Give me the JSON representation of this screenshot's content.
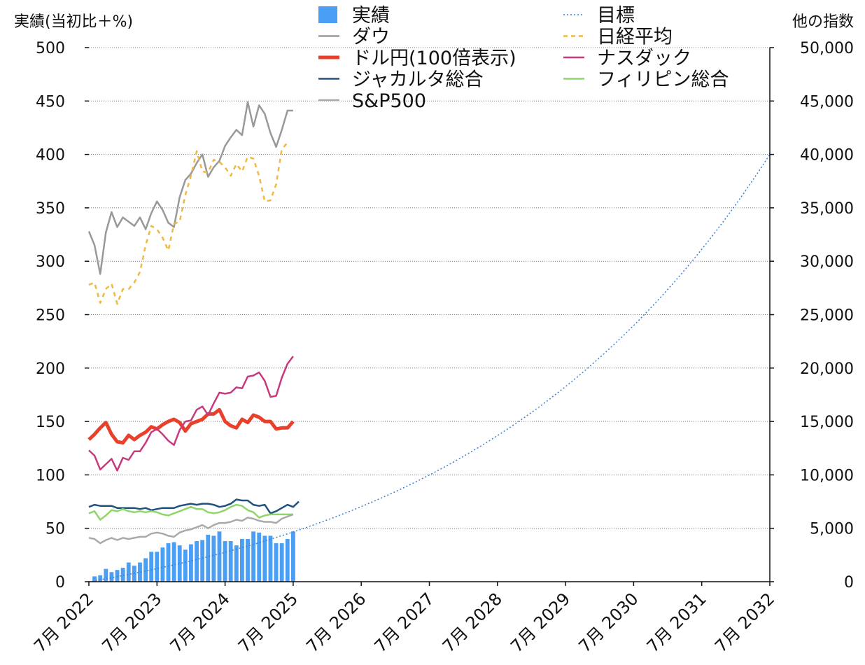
{
  "chart_data": {
    "type": "bar",
    "ylabel_left": "実績(当初比＋%)",
    "ylabel_right": "他の指数",
    "ylim_left": [
      0,
      500
    ],
    "ylim_right": [
      0,
      50000
    ],
    "y_ticks_left": [
      "0",
      "50",
      "100",
      "150",
      "200",
      "250",
      "300",
      "350",
      "400",
      "450",
      "500"
    ],
    "y_ticks_right": [
      "0",
      "5,000",
      "10,000",
      "15,000",
      "20,000",
      "25,000",
      "30,000",
      "35,000",
      "40,000",
      "45,000",
      "50,000"
    ],
    "x_range": [
      2022.5,
      2032.5
    ],
    "x_ticks": [
      {
        "x": 2022.5,
        "label": "7月 2022"
      },
      {
        "x": 2023.5,
        "label": "7月 2023"
      },
      {
        "x": 2024.5,
        "label": "7月 2024"
      },
      {
        "x": 2025.5,
        "label": "7月 2025"
      },
      {
        "x": 2026.5,
        "label": "7月 2026"
      },
      {
        "x": 2027.5,
        "label": "7月 2027"
      },
      {
        "x": 2028.5,
        "label": "7月 2028"
      },
      {
        "x": 2029.5,
        "label": "7月 2029"
      },
      {
        "x": 2030.5,
        "label": "7月 2030"
      },
      {
        "x": 2031.5,
        "label": "7月 2031"
      },
      {
        "x": 2032.5,
        "label": "7月 2032"
      }
    ],
    "grid": "horizontal dotted",
    "legend_position": "top",
    "bars": {
      "name": "実績",
      "color": "#4a9ff5",
      "x_start": 2022.5833,
      "x_step": 0.08333,
      "values": [
        5,
        6,
        12,
        9,
        11,
        13,
        18,
        15,
        18,
        22,
        28,
        28,
        32,
        36,
        37,
        34,
        30,
        35,
        38,
        39,
        44,
        43,
        47,
        38,
        38,
        34,
        40,
        40,
        47,
        46,
        43,
        43,
        36,
        36,
        40,
        47
      ]
    },
    "series": [
      {
        "name": "ダウ",
        "axis": "right",
        "color": "#999999",
        "style": "solid",
        "width": 2.5,
        "x_start": 2022.5,
        "x_step": 0.08333,
        "values": [
          32800,
          31500,
          28800,
          32700,
          34600,
          33200,
          34100,
          33700,
          33300,
          34100,
          33000,
          34500,
          35600,
          34800,
          33600,
          33200,
          36000,
          37600,
          38200,
          39200,
          40000,
          37900,
          38800,
          39400,
          40800,
          41600,
          42300,
          41800,
          44900,
          42600,
          44600,
          43800,
          42000,
          40700,
          42300,
          44100,
          44100
        ]
      },
      {
        "name": "日経平均",
        "axis": "right",
        "color": "#f0b840",
        "style": "dashed",
        "width": 2.5,
        "x_start": 2022.5,
        "x_step": 0.08333,
        "values": [
          27800,
          28000,
          26100,
          27400,
          27900,
          26000,
          27400,
          27400,
          28000,
          29000,
          31500,
          33300,
          33000,
          32200,
          31000,
          33500,
          33700,
          36200,
          38000,
          40300,
          38400,
          38300,
          39500,
          39300,
          38800,
          38000,
          39100,
          38400,
          39800,
          39600,
          38000,
          35600,
          35700,
          37200,
          40500,
          41100
        ]
      },
      {
        "name": "ドル円(100倍表示)",
        "axis": "right",
        "color": "#e8402a",
        "style": "solid",
        "width": 5,
        "x_start": 2022.5,
        "x_step": 0.08333,
        "values": [
          13300,
          13800,
          14400,
          14900,
          13800,
          13100,
          13000,
          13700,
          13300,
          13700,
          14000,
          14500,
          14300,
          14700,
          15000,
          15200,
          14900,
          14100,
          14800,
          15000,
          15200,
          15700,
          15700,
          16100,
          15000,
          14600,
          14400,
          15200,
          14900,
          15600,
          15400,
          15000,
          15000,
          14300,
          14400,
          14400,
          15000
        ]
      },
      {
        "name": "ナスダック",
        "axis": "right",
        "color": "#c83a7e",
        "style": "solid",
        "width": 2.5,
        "x_start": 2022.5,
        "x_step": 0.08333,
        "values": [
          12300,
          11800,
          10500,
          11000,
          11500,
          10400,
          11600,
          11400,
          12200,
          12200,
          13000,
          14000,
          14300,
          13800,
          13200,
          12800,
          14200,
          15000,
          15100,
          16100,
          16400,
          15600,
          16700,
          17700,
          17600,
          17700,
          18200,
          18100,
          19200,
          19300,
          19600,
          18800,
          17300,
          17400,
          19100,
          20400,
          21100
        ]
      },
      {
        "name": "ジャカルタ総合",
        "axis": "right",
        "color": "#20527d",
        "style": "solid",
        "width": 2.5,
        "x_start": 2022.5,
        "x_step": 0.08333,
        "values": [
          7000,
          7200,
          7100,
          7100,
          7100,
          6900,
          6900,
          6900,
          6900,
          6800,
          6900,
          6700,
          6800,
          6900,
          6900,
          6900,
          7100,
          7200,
          7300,
          7200,
          7300,
          7300,
          7200,
          7000,
          7100,
          7300,
          7700,
          7600,
          7600,
          7200,
          7100,
          7200,
          6400,
          6600,
          6900,
          7200,
          7000,
          7500
        ]
      },
      {
        "name": "フィリピン総合",
        "axis": "right",
        "color": "#8ed66a",
        "style": "solid",
        "width": 2.5,
        "x_start": 2022.5,
        "x_step": 0.08333,
        "values": [
          6400,
          6600,
          5800,
          6200,
          6700,
          6600,
          6800,
          6600,
          6500,
          6600,
          6500,
          6600,
          6500,
          6300,
          6200,
          6400,
          6600,
          6800,
          7000,
          6800,
          6800,
          6500,
          6400,
          6500,
          6700,
          7000,
          7200,
          7100,
          6700,
          6500,
          6000,
          6200,
          6300,
          6300,
          6300,
          6300,
          6300
        ]
      },
      {
        "name": "S&P500",
        "axis": "right",
        "color": "#aaaaaa",
        "style": "solid",
        "width": 2.5,
        "x_start": 2022.5,
        "x_step": 0.08333,
        "values": [
          4100,
          4000,
          3600,
          3900,
          4100,
          3900,
          4100,
          4000,
          4100,
          4200,
          4200,
          4500,
          4600,
          4500,
          4300,
          4200,
          4600,
          4800,
          4900,
          5100,
          5300,
          5000,
          5300,
          5500,
          5500,
          5600,
          5800,
          5700,
          6000,
          5900,
          5700,
          5600,
          5600,
          5500,
          5900,
          6100,
          6300
        ]
      },
      {
        "name": "目標",
        "axis": "left",
        "color": "#3a7fd0",
        "style": "dotted",
        "width": 1.5,
        "kind": "exponential",
        "x_from": 2022.5,
        "y_from": 0,
        "x_to": 2032.5,
        "y_to": 400
      }
    ],
    "legend": [
      {
        "name": "実績",
        "marker": "square",
        "color": "#4a9ff5",
        "column": 0
      },
      {
        "name": "ダウ",
        "marker": "line",
        "color": "#999999",
        "column": 0
      },
      {
        "name": "ドル円(100倍表示)",
        "marker": "thick-line",
        "color": "#e8402a",
        "column": 0
      },
      {
        "name": "ジャカルタ総合",
        "marker": "line",
        "color": "#20527d",
        "column": 0
      },
      {
        "name": "S&P500",
        "marker": "line",
        "color": "#aaaaaa",
        "column": 0
      },
      {
        "name": "目標",
        "marker": "dotted-line",
        "color": "#3a7fd0",
        "column": 1
      },
      {
        "name": "日経平均",
        "marker": "dashed-line",
        "color": "#f0b840",
        "column": 1
      },
      {
        "name": "ナスダック",
        "marker": "line",
        "color": "#c83a7e",
        "column": 1
      },
      {
        "name": "フィリピン総合",
        "marker": "line",
        "color": "#8ed66a",
        "column": 1
      }
    ]
  }
}
